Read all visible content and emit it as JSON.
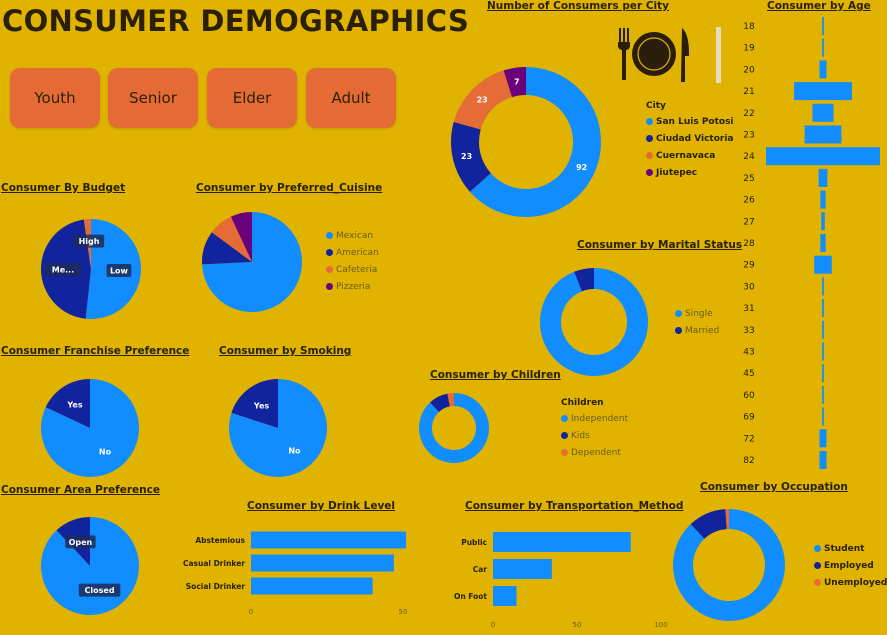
{
  "title": "CONSUMER DEMOGRAPHICS",
  "filters": [
    "Youth",
    "Senior",
    "Elder",
    "Adult"
  ],
  "colors": {
    "blue": "#118dff",
    "navy": "#12239e",
    "orange": "#e66c37",
    "purple": "#6b007b",
    "bg": "#dfb300",
    "button": "#e46a36"
  },
  "icons": [
    "restaurant-icon"
  ],
  "chart_data": [
    {
      "id": "city",
      "type": "pie",
      "title": "Number of Consumers per City",
      "legend_title": "City",
      "categories": [
        "San Luis Potosi",
        "Ciudad Victoria",
        "Cuernavaca",
        "Jiutepec"
      ],
      "values": [
        92,
        23,
        23,
        7
      ],
      "labels": [
        "92",
        "23",
        "23",
        "7"
      ]
    },
    {
      "id": "age",
      "type": "bar",
      "title": "Consumer by Age",
      "categories": [
        "18",
        "19",
        "20",
        "21",
        "22",
        "23",
        "24",
        "25",
        "26",
        "27",
        "28",
        "29",
        "30",
        "31",
        "33",
        "43",
        "45",
        "60",
        "69",
        "72",
        "82"
      ],
      "values": [
        1,
        1,
        4,
        33,
        12,
        21,
        65,
        5,
        3,
        2,
        3,
        10,
        1,
        1,
        1,
        1,
        1,
        1,
        1,
        4,
        4
      ]
    },
    {
      "id": "budget",
      "type": "pie",
      "title": "Consumer By Budget",
      "categories": [
        "Low",
        "Medium",
        "High"
      ],
      "labels": [
        "Low",
        "Me...",
        "High"
      ],
      "values": [
        91,
        81,
        4
      ]
    },
    {
      "id": "cuisine",
      "type": "pie",
      "title": "Consumer by Preferred_Cuisine",
      "categories": [
        "Mexican",
        "American",
        "Cafeteria",
        "Pizzeria"
      ],
      "values": [
        75,
        11,
        8,
        7
      ]
    },
    {
      "id": "marital",
      "type": "pie",
      "title": "Consumer by Marital Status",
      "categories": [
        "Single",
        "Married"
      ],
      "values": [
        94,
        6
      ]
    },
    {
      "id": "franchise",
      "type": "pie",
      "title": "Consumer Franchise Preference",
      "categories": [
        "No",
        "Yes"
      ],
      "labels": [
        "No",
        "Yes"
      ],
      "values": [
        82,
        18
      ]
    },
    {
      "id": "smoking",
      "type": "pie",
      "title": "Consumer by Smoking",
      "categories": [
        "No",
        "Yes"
      ],
      "labels": [
        "No",
        "Yes"
      ],
      "values": [
        80,
        20
      ]
    },
    {
      "id": "children",
      "type": "pie",
      "title": "Consumer by Children",
      "legend_title": "Children",
      "categories": [
        "Independent",
        "Kids",
        "Dependent"
      ],
      "values": [
        88,
        9,
        3
      ]
    },
    {
      "id": "area",
      "type": "pie",
      "title": "Consumer Area Preference",
      "categories": [
        "Closed",
        "Open"
      ],
      "labels": [
        "Closed",
        "Open"
      ],
      "values": [
        88,
        12
      ]
    },
    {
      "id": "drink",
      "type": "bar",
      "title": "Consumer by Drink Level",
      "categories": [
        "Abstemious",
        "Casual Drinker",
        "Social Drinker"
      ],
      "values": [
        51,
        47,
        40
      ],
      "ticks": [
        "0",
        "50"
      ],
      "xlim": [
        0,
        50
      ]
    },
    {
      "id": "transport",
      "type": "bar",
      "title": "Consumer by Transportation_Method",
      "categories": [
        "Public",
        "Car",
        "On Foot"
      ],
      "values": [
        82,
        35,
        14
      ],
      "ticks": [
        "0",
        "50",
        "100"
      ],
      "xlim": [
        0,
        100
      ]
    },
    {
      "id": "occupation",
      "type": "pie",
      "title": "Consumer by Occupation",
      "categories": [
        "Student",
        "Employed",
        "Unemployed"
      ],
      "values": [
        88,
        11,
        1
      ]
    }
  ]
}
